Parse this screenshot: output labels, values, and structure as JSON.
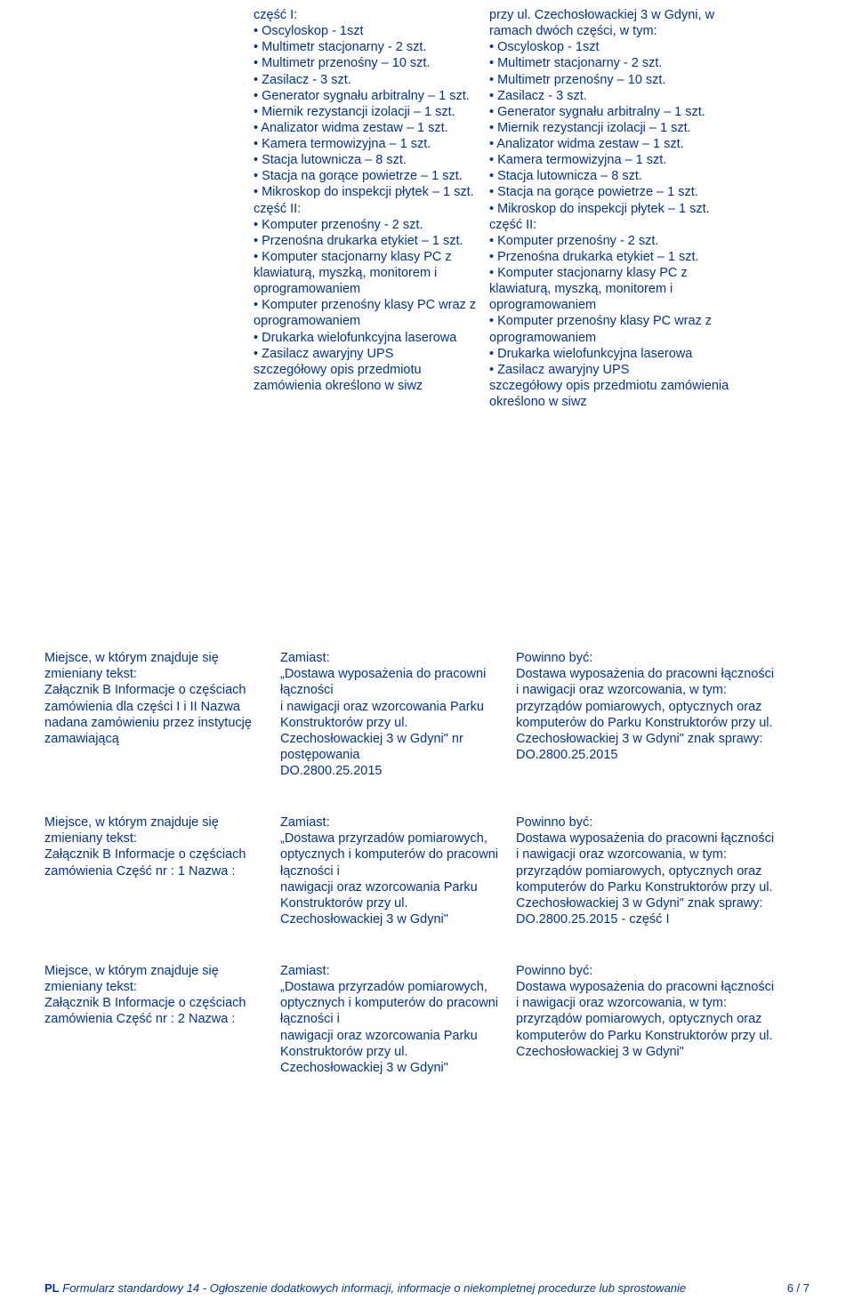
{
  "colors": {
    "text": "#003399",
    "bg": "#ffffff"
  },
  "top": {
    "colA": "część I:\n• Oscyloskop - 1szt\n• Multimetr stacjonarny - 2 szt.\n• Multimetr przenośny – 10 szt.\n• Zasilacz - 3 szt.\n• Generator sygnału arbitralny – 1 szt.\n• Miernik rezystancji izolacji – 1 szt.\n• Analizator widma zestaw – 1 szt.\n• Kamera termowizyjna – 1 szt.\n• Stacja lutownicza – 8 szt.\n• Stacja na gorące powietrze – 1 szt.\n• Mikroskop do inspekcji płytek – 1 szt.\nczęść II:\n• Komputer przenośny - 2 szt.\n• Przenośna drukarka etykiet – 1 szt.\n• Komputer stacjonarny klasy PC z klawiaturą, myszką, monitorem i oprogramowaniem\n• Komputer przenośny klasy PC wraz z oprogramowaniem\n• Drukarka wielofunkcyjna laserowa\n• Zasilacz awaryjny UPS\nszczegółowy opis przedmiotu zamówienia określono w siwz",
    "colB": "przy ul. Czechosłowackiej 3 w Gdyni, w ramach dwóch części, w tym:\n• Oscyloskop - 1szt\n• Multimetr stacjonarny - 2 szt.\n• Multimetr przenośny – 10 szt.\n• Zasilacz - 3 szt.\n• Generator sygnału arbitralny – 1 szt.\n• Miernik rezystancji izolacji – 1 szt.\n• Analizator widma zestaw – 1 szt.\n• Kamera termowizyjna – 1 szt.\n• Stacja lutownicza – 8 szt.\n• Stacja na gorące powietrze – 1 szt.\n• Mikroskop do inspekcji płytek – 1 szt.\nczęść II:\n• Komputer przenośny - 2 szt.\n• Przenośna drukarka etykiet – 1 szt.\n• Komputer stacjonarny klasy PC z klawiaturą, myszką, monitorem i oprogramowaniem\n• Komputer przenośny klasy PC wraz z oprogramowaniem\n• Drukarka wielofunkcyjna laserowa\n• Zasilacz awaryjny UPS\nszczegółowy opis przedmiotu zamówienia określono w siwz"
  },
  "rows": [
    {
      "c1": "Miejsce, w którym znajduje się zmieniany tekst:\nZałącznik B Informacje o częściach zamówienia dla części I i II Nazwa nadana zamówieniu przez instytucję zamawiającą",
      "c2": "Zamiast:\n„Dostawa wyposażenia do pracowni łączności\ni nawigacji oraz wzorcowania Parku Konstruktorów przy ul. Czechosłowackiej 3 w Gdyni\" nr postępowania\nDO.2800.25.2015",
      "c3": "Powinno być:\nDostawa wyposażenia do pracowni łączności i nawigacji oraz wzorcowania, w tym: przyrządów pomiarowych, optycznych oraz komputerów do Parku Konstruktorów przy ul. Czechosłowackiej 3 w Gdyni\" znak sprawy: DO.2800.25.2015"
    },
    {
      "c1": "Miejsce, w którym znajduje się zmieniany tekst:\nZałącznik B Informacje o częściach zamówienia Część nr : 1 Nazwa :",
      "c2": "Zamiast:\n„Dostawa przyrzadów pomiarowych, optycznych i komputerów do pracowni łączności i\nnawigacji oraz wzorcowania Parku Konstruktorów przy ul. Czechosłowackiej 3 w Gdyni\"",
      "c3": "Powinno być:\nDostawa wyposażenia do pracowni łączności i nawigacji oraz wzorcowania, w tym: przyrządów pomiarowych, optycznych oraz komputerów do Parku Konstruktorów przy ul. Czechosłowackiej 3 w Gdyni\" znak sprawy: DO.2800.25.2015 - część I"
    },
    {
      "c1": "Miejsce, w którym znajduje się zmieniany tekst:\nZałącznik B Informacje o częściach zamówienia Część nr : 2 Nazwa :",
      "c2": "Zamiast:\n„Dostawa przyrzadów pomiarowych, optycznych i komputerów do pracowni łączności i\nnawigacji oraz wzorcowania Parku Konstruktorów przy ul. Czechosłowackiej 3 w Gdyni\"",
      "c3": "Powinno być:\nDostawa wyposażenia do pracowni łączności i nawigacji oraz wzorcowania, w tym: przyrządów pomiarowych, optycznych oraz komputerów do Parku Konstruktorów przy ul. Czechosłowackiej 3 w Gdyni\""
    }
  ],
  "footer": {
    "pl": "PL",
    "title": "Formularz standardowy 14 - Ogłoszenie dodatkowych informacji, informacje o niekompletnej procedurze lub sprostowanie",
    "page": "6 / 7"
  }
}
